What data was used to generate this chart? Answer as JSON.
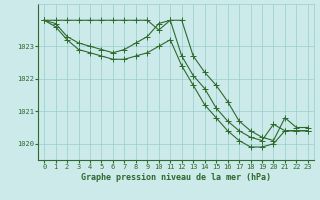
{
  "x": [
    0,
    1,
    2,
    3,
    4,
    5,
    6,
    7,
    8,
    9,
    10,
    11,
    12,
    13,
    14,
    15,
    16,
    17,
    18,
    19,
    20,
    21,
    22,
    23
  ],
  "line1": [
    1023.8,
    1023.8,
    1023.8,
    1023.8,
    1023.8,
    1023.8,
    1023.8,
    1023.8,
    1023.8,
    1023.8,
    1023.5,
    1023.8,
    1023.8,
    1022.7,
    1022.2,
    1021.8,
    1021.3,
    1020.7,
    1020.4,
    1020.2,
    1020.1,
    1020.8,
    1020.5,
    1020.5
  ],
  "line2": [
    1023.8,
    1023.7,
    1023.3,
    1023.1,
    1023.0,
    1022.9,
    1022.8,
    1022.9,
    1023.1,
    1023.3,
    1023.7,
    1023.8,
    1022.7,
    1022.1,
    1021.7,
    1021.1,
    1020.7,
    1020.4,
    1020.2,
    1020.1,
    1020.6,
    1020.4,
    1020.4,
    1020.4
  ],
  "line3": [
    1023.8,
    1023.6,
    1023.2,
    1022.9,
    1022.8,
    1022.7,
    1022.6,
    1022.6,
    1022.7,
    1022.8,
    1023.0,
    1023.2,
    1022.4,
    1021.8,
    1021.2,
    1020.8,
    1020.4,
    1020.1,
    1019.9,
    1019.9,
    1020.0,
    1020.4,
    1020.4,
    1020.4
  ],
  "xlim": [
    -0.5,
    23.5
  ],
  "ylim": [
    1019.5,
    1024.3
  ],
  "yticks": [
    1020,
    1021,
    1022,
    1023
  ],
  "xticks": [
    0,
    1,
    2,
    3,
    4,
    5,
    6,
    7,
    8,
    9,
    10,
    11,
    12,
    13,
    14,
    15,
    16,
    17,
    18,
    19,
    20,
    21,
    22,
    23
  ],
  "line_color": "#2d6a2d",
  "bg_color": "#cceaea",
  "grid_color": "#99cccc",
  "xlabel": "Graphe pression niveau de la mer (hPa)",
  "marker": "+",
  "marker_size": 4,
  "linewidth": 0.8,
  "tick_label_color": "#2d6a2d",
  "xlabel_color": "#2d6a2d",
  "tick_fontsize": 5.0,
  "xlabel_fontsize": 6.0
}
